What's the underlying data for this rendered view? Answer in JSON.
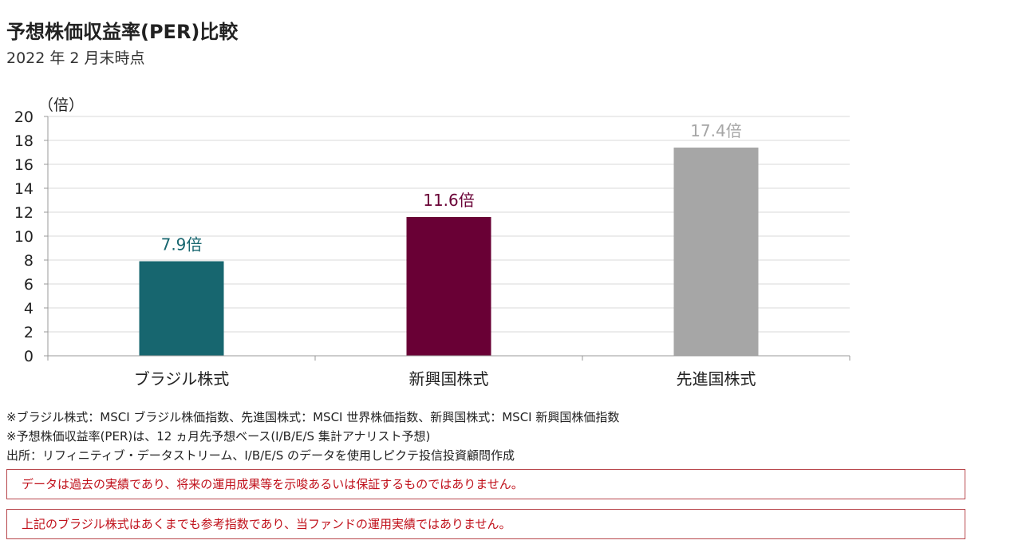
{
  "header": {
    "title": "予想株価収益率(PER)比較",
    "subtitle": "2022 年 2 月末時点"
  },
  "chart_data": {
    "type": "bar",
    "categories": [
      "ブラジル株式",
      "新興国株式",
      "先進国株式"
    ],
    "values": [
      7.9,
      11.6,
      17.4
    ],
    "data_labels": [
      "7.9倍",
      "11.6倍",
      "17.4倍"
    ],
    "colors": [
      "#17666f",
      "#690035",
      "#a6a6a6"
    ],
    "unit_label": "（倍）",
    "ylim": [
      0,
      20
    ],
    "yticks": [
      0,
      2,
      4,
      6,
      8,
      10,
      12,
      14,
      16,
      18,
      20
    ],
    "grid": true,
    "legend": "none"
  },
  "notes": [
    "※ブラジル株式：MSCI ブラジル株価指数、先進国株式：MSCI 世界株価指数、新興国株式：MSCI 新興国株価指数",
    "※予想株価収益率(PER)は、12 ヵ月先予想ベース(I/B/E/S 集計アナリスト予想)",
    "出所：リフィニティブ・データストリーム、I/B/E/S のデータを使用しピクテ投信投資顧問作成"
  ],
  "disclaimers": [
    "データは過去の実績であり、将来の運用成果等を示唆あるいは保証するものではありません。",
    "上記のブラジル株式はあくまでも参考指数であり、当ファンドの運用実績ではありません。"
  ]
}
